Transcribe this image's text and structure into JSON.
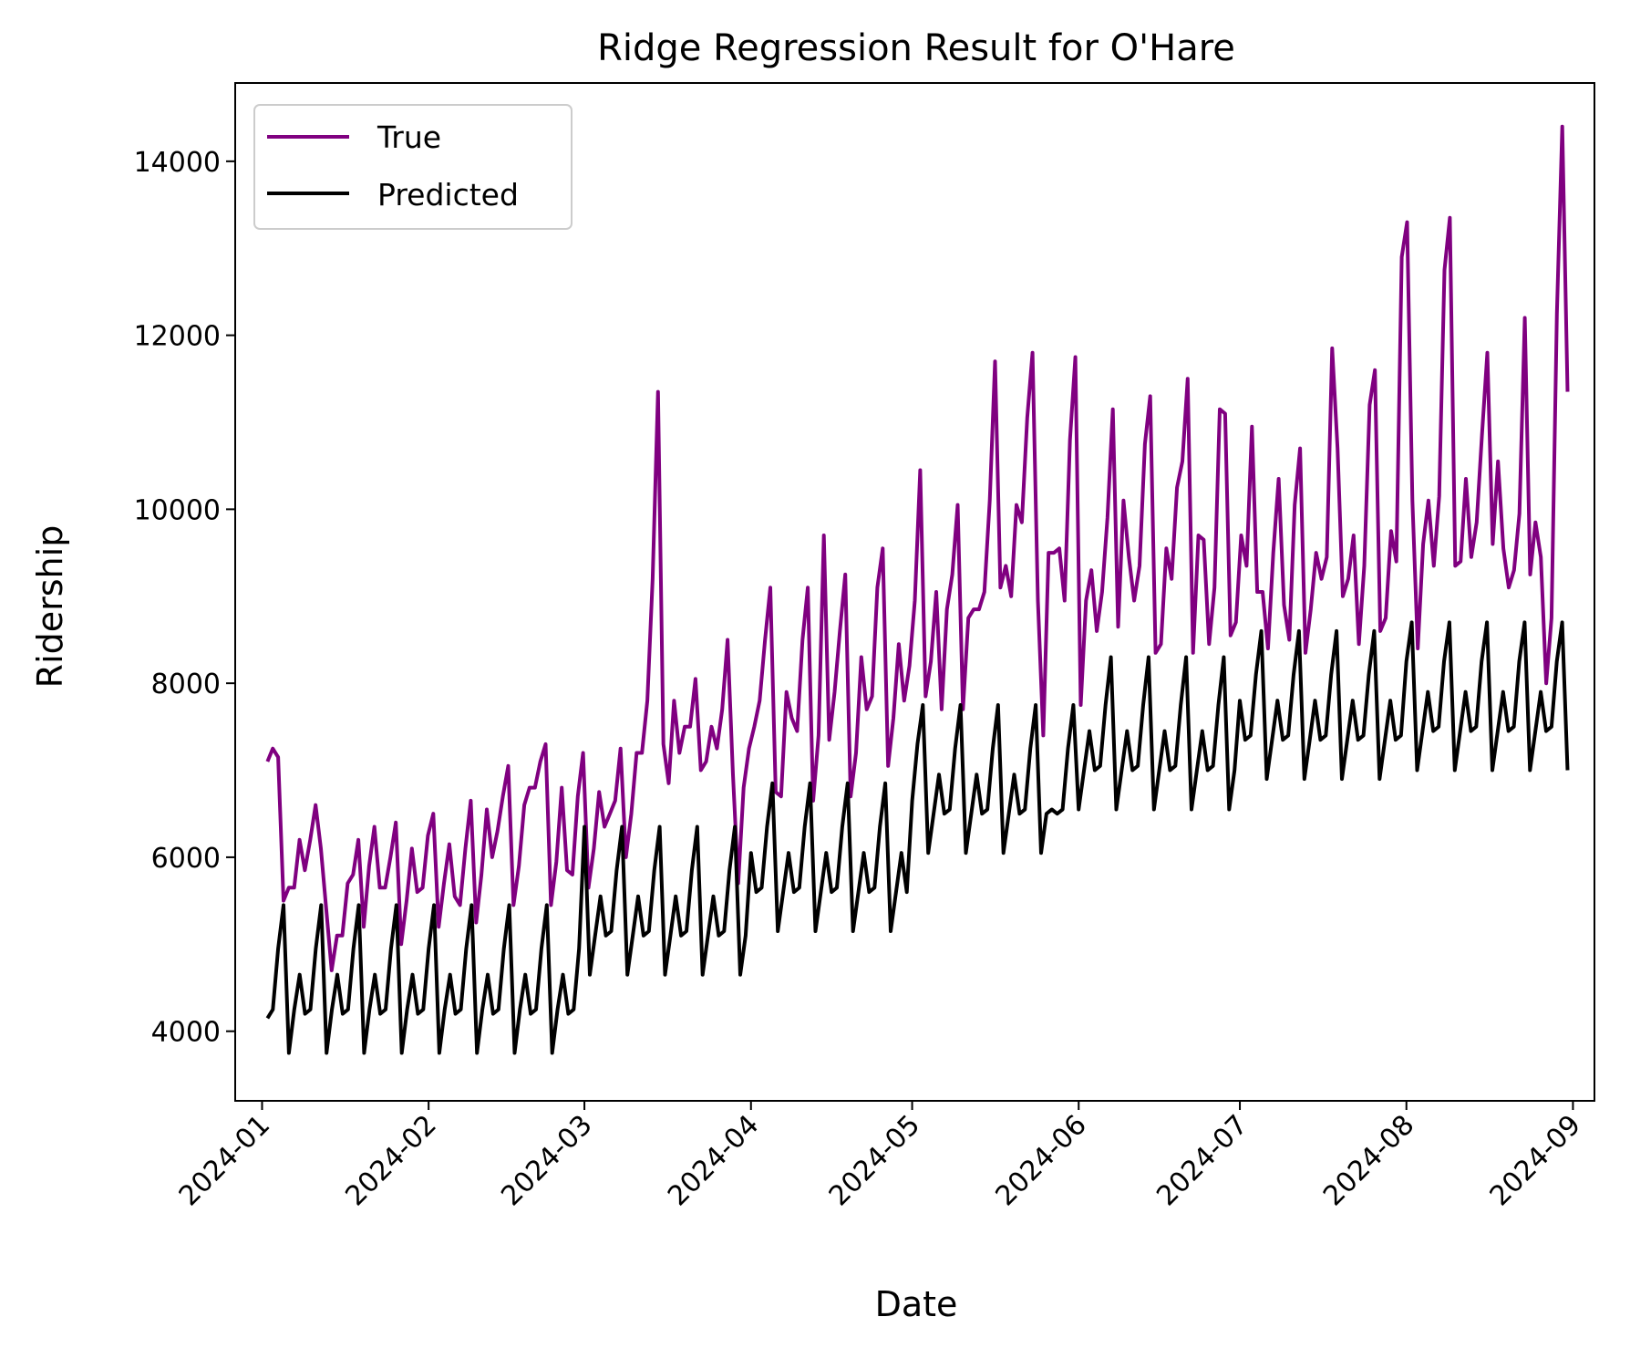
{
  "chart_data": {
    "type": "line",
    "title": "Ridge Regression Result for O'Hare",
    "xlabel": "Date",
    "ylabel": "Ridership",
    "x_start": "2024-01-02",
    "x_end": "2024-08-31",
    "xlim": [
      "2023-12-27",
      "2024-09-05"
    ],
    "ylim": [
      3200,
      14900
    ],
    "yticks": [
      4000,
      6000,
      8000,
      10000,
      12000,
      14000
    ],
    "xticks": [
      {
        "date": "2024-01-01",
        "label": "2024-01"
      },
      {
        "date": "2024-02-01",
        "label": "2024-02"
      },
      {
        "date": "2024-03-01",
        "label": "2024-03"
      },
      {
        "date": "2024-04-01",
        "label": "2024-04"
      },
      {
        "date": "2024-05-01",
        "label": "2024-05"
      },
      {
        "date": "2024-06-01",
        "label": "2024-06"
      },
      {
        "date": "2024-07-01",
        "label": "2024-07"
      },
      {
        "date": "2024-08-01",
        "label": "2024-08"
      },
      {
        "date": "2024-09-01",
        "label": "2024-09"
      }
    ],
    "legend_position": "top-left",
    "grid": false,
    "series": [
      {
        "name": "True",
        "color": "#800080",
        "values": [
          7100,
          7250,
          7150,
          5500,
          5650,
          5650,
          6200,
          5850,
          6200,
          6600,
          6100,
          5400,
          4700,
          5100,
          5100,
          5700,
          5800,
          6200,
          5200,
          5900,
          6350,
          5650,
          5650,
          6000,
          6400,
          5000,
          5500,
          6100,
          5600,
          5650,
          6250,
          6500,
          5200,
          5700,
          6150,
          5550,
          5450,
          6100,
          6650,
          5250,
          5800,
          6550,
          6000,
          6300,
          6700,
          7050,
          5450,
          5900,
          6600,
          6800,
          6800,
          7100,
          7300,
          5450,
          5950,
          6800,
          5850,
          5800,
          6700,
          7200,
          5650,
          6100,
          6750,
          6350,
          6500,
          6650,
          7250,
          6000,
          6500,
          7200,
          7200,
          7800,
          9200,
          11350,
          7300,
          6850,
          7800,
          7200,
          7500,
          7500,
          8050,
          7000,
          7100,
          7500,
          7250,
          7700,
          8500,
          6950,
          5700,
          6800,
          7250,
          7500,
          7800,
          8500,
          9100,
          6750,
          6700,
          7900,
          7600,
          7450,
          8500,
          9100,
          6650,
          7400,
          9700,
          7350,
          7900,
          8600,
          9250,
          6700,
          7200,
          8300,
          7700,
          7850,
          9100,
          9550,
          7050,
          7600,
          8450,
          7800,
          8200,
          8950,
          10450,
          7850,
          8250,
          9050,
          7700,
          8850,
          9250,
          10050,
          7700,
          8750,
          8850,
          8850,
          9050,
          10100,
          11700,
          9100,
          9350,
          9000,
          10050,
          9850,
          11050,
          11800,
          8950,
          7400,
          9500,
          9500,
          9550,
          8950,
          10800,
          11750,
          7750,
          8950,
          9300,
          8600,
          9050,
          9900,
          11150,
          8650,
          10100,
          9450,
          8950,
          9350,
          10750,
          11300,
          8350,
          8450,
          9550,
          9200,
          10250,
          10550,
          11500,
          8350,
          9700,
          9650,
          8450,
          9100,
          11150,
          11100,
          8550,
          8700,
          9700,
          9350,
          10950,
          9050,
          9050,
          8400,
          9500,
          10350,
          8900,
          8500,
          10050,
          10700,
          8350,
          8850,
          9500,
          9200,
          9450,
          11850,
          10700,
          9000,
          9200,
          9700,
          8450,
          9350,
          11200,
          11600,
          8600,
          8750,
          9750,
          9400,
          12900,
          13300,
          10100,
          8400,
          9600,
          10100,
          9350,
          10150,
          12750,
          13350,
          9350,
          9400,
          10350,
          9450,
          9850,
          10850,
          11800,
          9600,
          10550,
          9550,
          9100,
          9300,
          9950,
          12200,
          9250,
          9850,
          9450,
          8000,
          8750,
          12250,
          14400,
          11350
        ]
      },
      {
        "name": "Predicted",
        "color": "#000000",
        "values": [
          4150,
          4250,
          4950,
          5450,
          3750,
          4250,
          4650,
          4200,
          4250,
          4950,
          5450,
          3750,
          4250,
          4650,
          4200,
          4250,
          4950,
          5450,
          3750,
          4250,
          4650,
          4200,
          4250,
          4950,
          5450,
          3750,
          4250,
          4650,
          4200,
          4250,
          4950,
          5450,
          3750,
          4250,
          4650,
          4200,
          4250,
          4950,
          5450,
          3750,
          4250,
          4650,
          4200,
          4250,
          4950,
          5450,
          3750,
          4250,
          4650,
          4200,
          4250,
          4950,
          5450,
          3750,
          4250,
          4650,
          4200,
          4250,
          4950,
          6350,
          4650,
          5100,
          5550,
          5100,
          5150,
          5850,
          6350,
          4650,
          5100,
          5550,
          5100,
          5150,
          5850,
          6350,
          4650,
          5100,
          5550,
          5100,
          5150,
          5850,
          6350,
          4650,
          5100,
          5550,
          5100,
          5150,
          5850,
          6350,
          4650,
          5100,
          6050,
          5600,
          5650,
          6350,
          6850,
          5150,
          5600,
          6050,
          5600,
          5650,
          6350,
          6850,
          5150,
          5600,
          6050,
          5600,
          5650,
          6350,
          6850,
          5150,
          5600,
          6050,
          5600,
          5650,
          6350,
          6850,
          5150,
          5600,
          6050,
          5600,
          6650,
          7300,
          7750,
          6050,
          6500,
          6950,
          6500,
          6550,
          7250,
          7750,
          6050,
          6500,
          6950,
          6500,
          6550,
          7250,
          7750,
          6050,
          6500,
          6950,
          6500,
          6550,
          7250,
          7750,
          6050,
          6500,
          6550,
          6500,
          6550,
          7250,
          7750,
          6550,
          7000,
          7450,
          7000,
          7050,
          7750,
          8300,
          6550,
          7000,
          7450,
          7000,
          7050,
          7750,
          8300,
          6550,
          7000,
          7450,
          7000,
          7050,
          7750,
          8300,
          6550,
          7000,
          7450,
          7000,
          7050,
          7750,
          8300,
          6550,
          7000,
          7800,
          7350,
          7400,
          8100,
          8600,
          6900,
          7350,
          7800,
          7350,
          7400,
          8100,
          8600,
          6900,
          7350,
          7800,
          7350,
          7400,
          8100,
          8600,
          6900,
          7350,
          7800,
          7350,
          7400,
          8100,
          8600,
          6900,
          7350,
          7800,
          7350,
          7400,
          8250,
          8700,
          7000,
          7450,
          7900,
          7450,
          7500,
          8250,
          8700,
          7000,
          7450,
          7900,
          7450,
          7500,
          8250,
          8700,
          7000,
          7450,
          7900,
          7450,
          7500,
          8250,
          8700,
          7000,
          7450,
          7900,
          7450,
          7500,
          8250,
          8700,
          7000
        ]
      }
    ]
  }
}
